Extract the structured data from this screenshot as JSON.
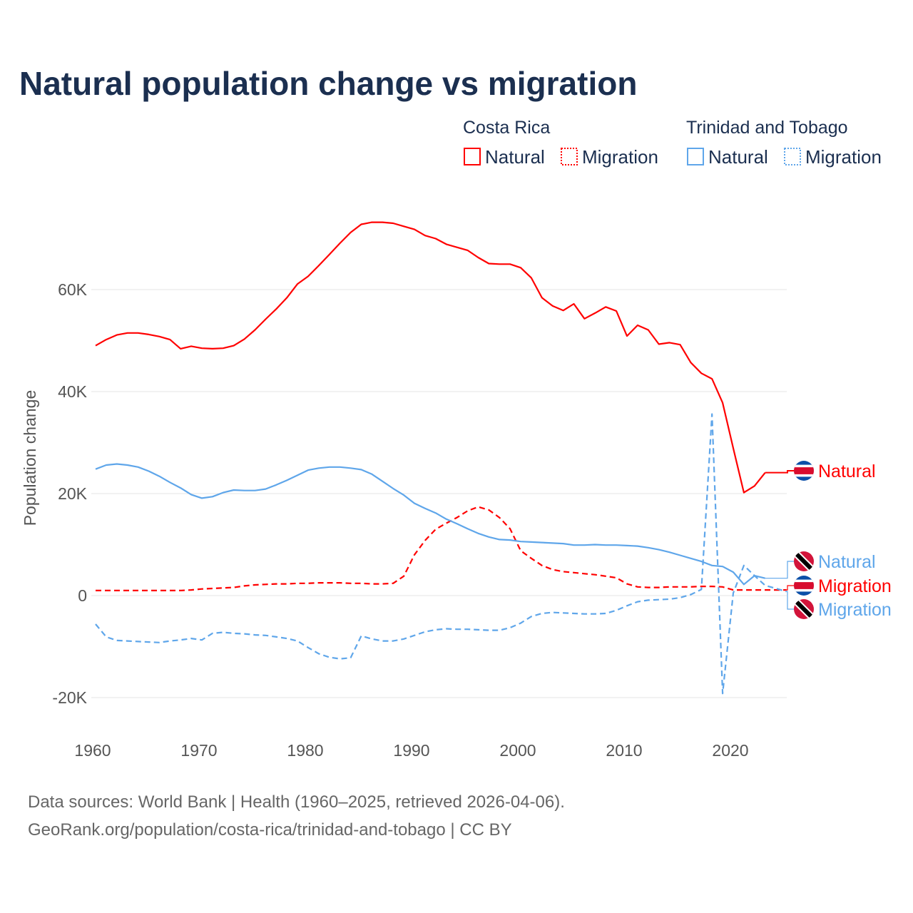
{
  "chart_data": {
    "type": "line",
    "title": "Natural population change vs migration",
    "ylabel": "Population change",
    "xlabel": "",
    "ylim": [
      -22,
      76
    ],
    "xlim": [
      1960,
      2025
    ],
    "value_unit": "thousands",
    "grid": true,
    "y_ticks": [
      {
        "value": -20,
        "label": "-20K"
      },
      {
        "value": 0,
        "label": "0"
      },
      {
        "value": 20,
        "label": "20K"
      },
      {
        "value": 40,
        "label": "40K"
      },
      {
        "value": 60,
        "label": "60K"
      }
    ],
    "x_ticks": [
      {
        "value": 1960,
        "label": "1960"
      },
      {
        "value": 1970,
        "label": "1970"
      },
      {
        "value": 1980,
        "label": "1980"
      },
      {
        "value": 1990,
        "label": "1990"
      },
      {
        "value": 2000,
        "label": "2000"
      },
      {
        "value": 2010,
        "label": "2010"
      },
      {
        "value": 2020,
        "label": "2020"
      }
    ],
    "legend": {
      "placement": "top-right",
      "groups": [
        {
          "name": "Costa Rica",
          "items": [
            "Natural",
            "Migration"
          ],
          "color": "#ff0000"
        },
        {
          "name": "Trinidad and Tobago",
          "items": [
            "Natural",
            "Migration"
          ],
          "color": "#5fa6ea"
        }
      ]
    },
    "x_start": 1960,
    "series": [
      {
        "name": "Costa Rica Natural",
        "country": "Costa Rica",
        "label": "Natural",
        "flag": "costa-rica",
        "color": "#ff0000",
        "dashed": false,
        "values": [
          49.0,
          50.2,
          51.1,
          51.5,
          51.5,
          51.2,
          50.8,
          50.2,
          48.4,
          48.9,
          48.5,
          48.4,
          48.5,
          49.0,
          50.3,
          52.1,
          54.2,
          56.2,
          58.4,
          61.1,
          62.6,
          64.7,
          66.9,
          69.1,
          71.2,
          72.8,
          73.2,
          73.2,
          73.0,
          72.4,
          71.8,
          70.6,
          70.0,
          68.9,
          68.3,
          67.7,
          66.3,
          65.1,
          65.0,
          65.0,
          64.3,
          62.3,
          58.4,
          56.8,
          55.9,
          57.2,
          54.3,
          55.4,
          56.6,
          55.8,
          50.9,
          53.0,
          52.1,
          49.3,
          49.6,
          49.2,
          45.7,
          43.6,
          42.5,
          37.8,
          28.9,
          20.2,
          21.5,
          24.1,
          null,
          null
        ]
      },
      {
        "name": "Costa Rica Migration",
        "country": "Costa Rica",
        "label": "Migration",
        "flag": "costa-rica",
        "color": "#ff0000",
        "dashed": true,
        "values": [
          1.0,
          1.0,
          1.0,
          1.0,
          1.0,
          1.0,
          1.0,
          1.0,
          1.0,
          1.1,
          1.3,
          1.4,
          1.5,
          1.6,
          1.9,
          2.1,
          2.2,
          2.3,
          2.3,
          2.4,
          2.4,
          2.5,
          2.5,
          2.5,
          2.4,
          2.4,
          2.3,
          2.3,
          2.4,
          3.8,
          8.0,
          10.8,
          13.0,
          14.2,
          15.3,
          16.6,
          17.4,
          16.8,
          15.3,
          13.1,
          8.8,
          7.3,
          5.9,
          5.1,
          4.7,
          4.5,
          4.3,
          4.1,
          3.8,
          3.5,
          2.3,
          1.7,
          1.6,
          1.6,
          1.7,
          1.7,
          1.7,
          1.8,
          1.8,
          1.7,
          1.1,
          1.1,
          1.1,
          1.1,
          1.1,
          1.1
        ]
      },
      {
        "name": "Trinidad and Tobago Natural",
        "country": "Trinidad and Tobago",
        "label": "Natural",
        "flag": "trinidad-and-tobago",
        "color": "#5fa6ea",
        "dashed": false,
        "values": [
          24.8,
          25.6,
          25.8,
          25.6,
          25.2,
          24.4,
          23.4,
          22.2,
          21.1,
          19.8,
          19.1,
          19.4,
          20.2,
          20.7,
          20.6,
          20.6,
          20.9,
          21.7,
          22.6,
          23.6,
          24.6,
          25.0,
          25.2,
          25.2,
          25.0,
          24.7,
          23.8,
          22.4,
          21.0,
          19.7,
          18.1,
          17.1,
          16.2,
          15.0,
          14.1,
          13.1,
          12.2,
          11.5,
          11.0,
          10.9,
          10.6,
          10.5,
          10.4,
          10.3,
          10.2,
          9.9,
          9.9,
          10.0,
          9.9,
          9.9,
          9.8,
          9.7,
          9.4,
          9.0,
          8.5,
          7.9,
          7.3,
          6.7,
          5.9,
          5.7,
          4.6,
          2.2,
          3.9,
          3.4,
          null,
          null
        ]
      },
      {
        "name": "Trinidad and Tobago Migration",
        "country": "Trinidad and Tobago",
        "label": "Migration",
        "flag": "trinidad-and-tobago",
        "color": "#5fa6ea",
        "dashed": true,
        "values": [
          -5.6,
          -8.1,
          -8.8,
          -8.9,
          -9.0,
          -9.1,
          -9.2,
          -8.9,
          -8.7,
          -8.4,
          -8.7,
          -7.4,
          -7.2,
          -7.4,
          -7.5,
          -7.7,
          -7.8,
          -8.1,
          -8.4,
          -8.9,
          -10.2,
          -11.4,
          -12.1,
          -12.4,
          -12.2,
          -7.9,
          -8.5,
          -8.9,
          -8.9,
          -8.5,
          -7.8,
          -7.1,
          -6.7,
          -6.5,
          -6.6,
          -6.6,
          -6.7,
          -6.8,
          -6.8,
          -6.3,
          -5.4,
          -4.1,
          -3.5,
          -3.3,
          -3.4,
          -3.5,
          -3.6,
          -3.6,
          -3.5,
          -2.9,
          -2.0,
          -1.2,
          -0.9,
          -0.8,
          -0.7,
          -0.4,
          0.2,
          1.2,
          35.6,
          -19.2,
          0.5,
          5.9,
          3.9,
          2.0,
          1.4,
          0.8
        ]
      }
    ]
  },
  "footer": {
    "source_line": "Data sources: World Bank | Health (1960–2025, retrieved 2026-04-06).",
    "link_line": "GeoRank.org/population/costa-rica/trinidad-and-tobago | CC BY"
  }
}
